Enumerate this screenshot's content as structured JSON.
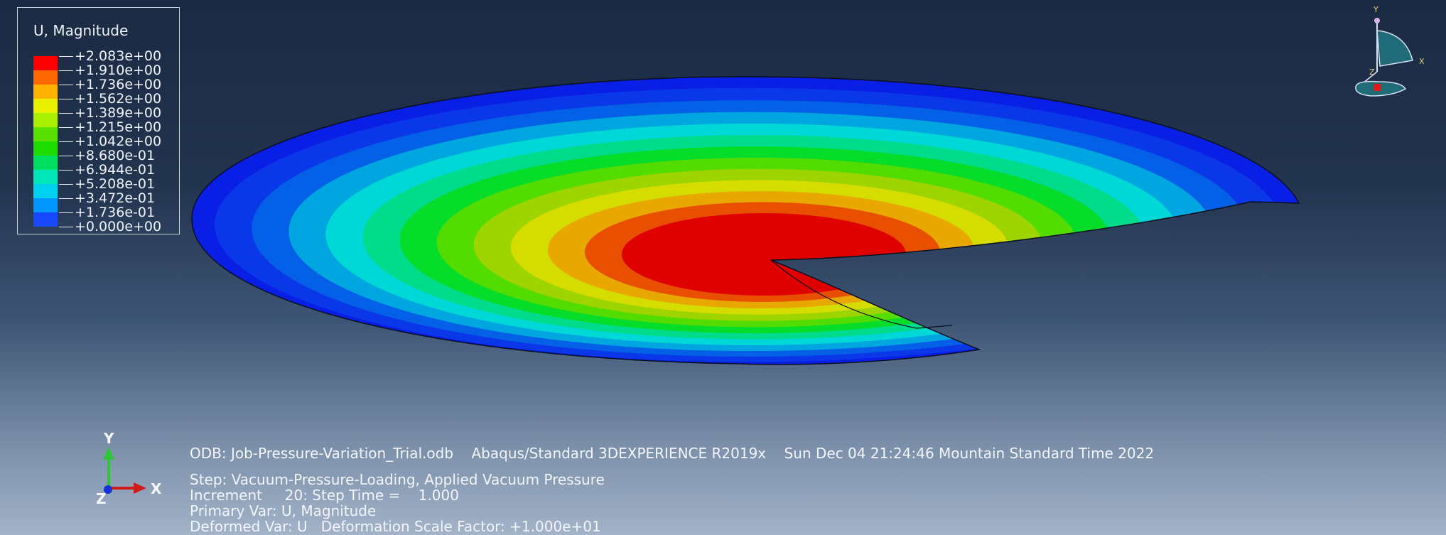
{
  "legend": {
    "title": "U, Magnitude",
    "values": [
      "+2.083e+00",
      "+1.910e+00",
      "+1.736e+00",
      "+1.562e+00",
      "+1.389e+00",
      "+1.215e+00",
      "+1.042e+00",
      "+8.680e-01",
      "+6.944e-01",
      "+5.208e-01",
      "+3.472e-01",
      "+1.736e-01",
      "+0.000e+00"
    ],
    "colors": [
      "#ff0000",
      "#ff6a00",
      "#ffb000",
      "#e8f000",
      "#aaf000",
      "#5ae000",
      "#1edc00",
      "#00e060",
      "#00e8b8",
      "#00d2f0",
      "#0096ff",
      "#1848ff"
    ]
  },
  "contour_colors_outer_to_inner": [
    "#0a1fe6",
    "#0a37e8",
    "#0460e6",
    "#00a6e0",
    "#00d8d8",
    "#00dc8c",
    "#06dc2a",
    "#52dc00",
    "#9ed400",
    "#d4dc00",
    "#e8a800",
    "#e85000",
    "#e00000"
  ],
  "triad": {
    "x": "X",
    "y": "Y",
    "z": "Z"
  },
  "orientation_triad": {
    "x": "X",
    "y": "Y",
    "z": "Z"
  },
  "info": {
    "odb": "ODB: Job-Pressure-Variation_Trial.odb",
    "solver": "Abaqus/Standard 3DEXPERIENCE R2019x",
    "date": "Sun Dec 04 21:24:46 Mountain Standard Time 2022",
    "step": "Step: Vacuum-Pressure-Loading, Applied Vacuum Pressure",
    "increment": "Increment     20: Step Time =    1.000",
    "primary_var": "Primary Var: U, Magnitude",
    "deformed_var": "Deformed Var: U   Deformation Scale Factor: +1.000e+01"
  }
}
